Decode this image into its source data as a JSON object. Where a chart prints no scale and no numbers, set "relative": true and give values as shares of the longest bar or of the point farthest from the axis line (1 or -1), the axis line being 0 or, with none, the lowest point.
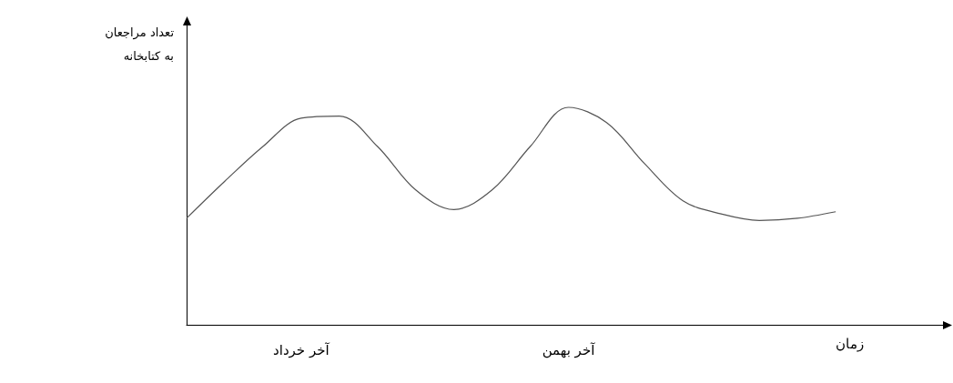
{
  "chart_data": {
    "type": "line",
    "relative": true,
    "xlabel": "زمان",
    "ylabel": "تعداد مراجعان به کتابخانه",
    "categories": [
      null,
      null,
      null,
      "آخر خرداد",
      null,
      null,
      null,
      null,
      null,
      null,
      "آخر بهمن",
      null,
      null,
      null,
      null,
      null,
      null,
      null,
      null,
      null,
      null
    ],
    "series": [
      {
        "color": "#555555",
        "values": [
          0.49,
          0.66,
          0.82,
          0.95,
          0.96,
          0.82,
          0.62,
          0.53,
          0.62,
          0.82,
          1,
          0.93,
          0.74,
          0.57,
          0.51,
          0.48,
          0.49,
          0.52,
          null,
          null,
          null
        ]
      }
    ],
    "marker": "none",
    "line_style": "solid",
    "grid": false
  }
}
